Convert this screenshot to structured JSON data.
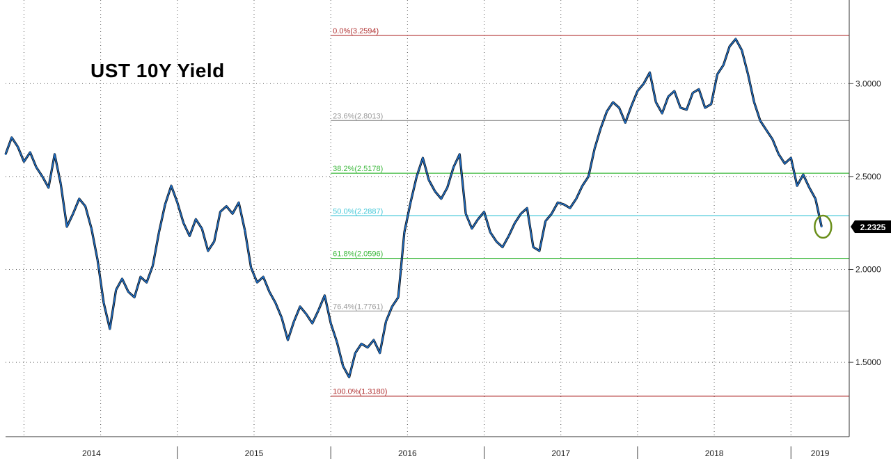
{
  "chart_data": {
    "type": "line",
    "title": "UST 10Y Yield",
    "x_labels": [
      "2014",
      "2015",
      "2016",
      "2017",
      "2018",
      "2019"
    ],
    "y_ticks": [
      "1.5000",
      "2.0000",
      "2.5000",
      "3.0000"
    ],
    "ylim": [
      1.1,
      3.45
    ],
    "xlim": [
      2013.88,
      2019.38
    ],
    "grid": true,
    "last_value": "2.2325",
    "line_color": "#1f6fc7",
    "fib_levels": [
      {
        "label": "0.0%(3.2594)",
        "value": 3.2594,
        "color": "#b03030"
      },
      {
        "label": "23.6%(2.8013)",
        "value": 2.8013,
        "color": "#9a9a9a"
      },
      {
        "label": "38.2%(2.5178)",
        "value": 2.5178,
        "color": "#3cb83c"
      },
      {
        "label": "50.0%(2.2887)",
        "value": 2.2887,
        "color": "#44c8d8"
      },
      {
        "label": "61.8%(2.0596)",
        "value": 2.0596,
        "color": "#3cb83c"
      },
      {
        "label": "76.4%(1.7761)",
        "value": 1.7761,
        "color": "#9a9a9a"
      },
      {
        "label": "100.0%(1.3180)",
        "value": 1.318,
        "color": "#b03030"
      }
    ],
    "series": [
      {
        "x": [
          2013.88,
          2013.92,
          2013.96,
          2014.0,
          2014.04,
          2014.08,
          2014.12,
          2014.16,
          2014.2,
          2014.24,
          2014.28,
          2014.32,
          2014.36,
          2014.4,
          2014.44,
          2014.48,
          2014.52,
          2014.56,
          2014.6,
          2014.64,
          2014.68,
          2014.72,
          2014.76,
          2014.8,
          2014.84,
          2014.88,
          2014.92,
          2014.96,
          2015.0,
          2015.04,
          2015.08,
          2015.12,
          2015.16,
          2015.2,
          2015.24,
          2015.28,
          2015.32,
          2015.36,
          2015.4,
          2015.44,
          2015.48,
          2015.52,
          2015.56,
          2015.6,
          2015.64,
          2015.68,
          2015.72,
          2015.76,
          2015.8,
          2015.84,
          2015.88,
          2015.92,
          2015.96,
          2016.0,
          2016.04,
          2016.08,
          2016.12,
          2016.16,
          2016.2,
          2016.24,
          2016.28,
          2016.32,
          2016.36,
          2016.4,
          2016.44,
          2016.48,
          2016.52,
          2016.56,
          2016.6,
          2016.64,
          2016.68,
          2016.72,
          2016.76,
          2016.8,
          2016.84,
          2016.88,
          2016.92,
          2016.96,
          2017.0,
          2017.04,
          2017.08,
          2017.12,
          2017.16,
          2017.2,
          2017.24,
          2017.28,
          2017.32,
          2017.36,
          2017.4,
          2017.44,
          2017.48,
          2017.52,
          2017.56,
          2017.6,
          2017.64,
          2017.68,
          2017.72,
          2017.76,
          2017.8,
          2017.84,
          2017.88,
          2017.92,
          2017.96,
          2018.0,
          2018.04,
          2018.08,
          2018.12,
          2018.16,
          2018.2,
          2018.24,
          2018.28,
          2018.32,
          2018.36,
          2018.4,
          2018.44,
          2018.48,
          2018.52,
          2018.56,
          2018.6,
          2018.64,
          2018.68,
          2018.72,
          2018.76,
          2018.8,
          2018.84,
          2018.88,
          2018.92,
          2018.96,
          2019.0,
          2019.04,
          2019.08,
          2019.12,
          2019.16,
          2019.2
        ],
        "y": [
          2.62,
          2.71,
          2.66,
          2.58,
          2.63,
          2.55,
          2.5,
          2.44,
          2.62,
          2.46,
          2.23,
          2.3,
          2.38,
          2.34,
          2.22,
          2.05,
          1.82,
          1.68,
          1.89,
          1.95,
          1.88,
          1.85,
          1.96,
          1.93,
          2.02,
          2.2,
          2.35,
          2.45,
          2.36,
          2.25,
          2.18,
          2.27,
          2.22,
          2.1,
          2.15,
          2.31,
          2.34,
          2.3,
          2.36,
          2.21,
          2.01,
          1.93,
          1.96,
          1.88,
          1.82,
          1.74,
          1.62,
          1.72,
          1.8,
          1.76,
          1.71,
          1.78,
          1.86,
          1.71,
          1.61,
          1.48,
          1.42,
          1.55,
          1.6,
          1.58,
          1.62,
          1.55,
          1.72,
          1.8,
          1.85,
          2.2,
          2.36,
          2.5,
          2.6,
          2.48,
          2.42,
          2.38,
          2.44,
          2.55,
          2.62,
          2.3,
          2.22,
          2.27,
          2.31,
          2.2,
          2.15,
          2.12,
          2.18,
          2.25,
          2.3,
          2.33,
          2.12,
          2.1,
          2.26,
          2.3,
          2.36,
          2.35,
          2.33,
          2.38,
          2.45,
          2.5,
          2.65,
          2.76,
          2.85,
          2.9,
          2.87,
          2.79,
          2.88,
          2.96,
          3.0,
          3.06,
          2.9,
          2.84,
          2.93,
          2.96,
          2.87,
          2.86,
          2.95,
          2.97,
          2.87,
          2.89,
          3.05,
          3.1,
          3.2,
          3.24,
          3.18,
          3.05,
          2.9,
          2.8,
          2.75,
          2.7,
          2.62,
          2.57,
          2.6,
          2.45,
          2.51,
          2.44,
          2.38,
          2.23
        ]
      }
    ]
  }
}
